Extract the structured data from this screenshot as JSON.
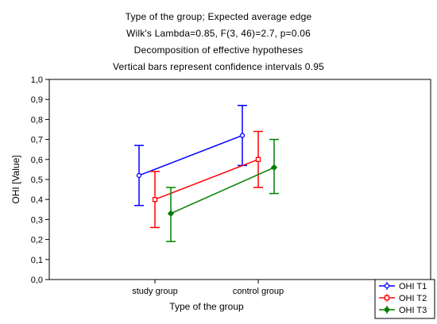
{
  "chart_data": {
    "type": "line",
    "title_lines": [
      "Type of the group; Expected average edge",
      "Wilk's Lambda=0.85, F(3, 46)=2.7, p=0.06",
      "Decomposition of effective hypotheses",
      "Vertical bars represent confidence intervals 0.95"
    ],
    "xlabel": "Type of the group",
    "ylabel": "OHI [Value]",
    "categories": [
      "study group",
      "control group"
    ],
    "ylim": [
      0,
      1
    ],
    "yticks": [
      "0,0",
      "0,1",
      "0,2",
      "0,3",
      "0,4",
      "0,5",
      "0,6",
      "0,7",
      "0,8",
      "0,9",
      "1,0"
    ],
    "grid": false,
    "legend_position": "bottom-right",
    "series": [
      {
        "name": "OHI T1",
        "color": "#0000ff",
        "marker": "circle",
        "values": [
          0.52,
          0.72
        ],
        "lower": [
          0.37,
          0.57
        ],
        "upper": [
          0.67,
          0.87
        ]
      },
      {
        "name": "OHI T2",
        "color": "#ff0000",
        "marker": "square",
        "values": [
          0.4,
          0.6
        ],
        "lower": [
          0.26,
          0.46
        ],
        "upper": [
          0.54,
          0.74
        ]
      },
      {
        "name": "OHI T3",
        "color": "#008000",
        "marker": "diamond",
        "values": [
          0.33,
          0.56
        ],
        "lower": [
          0.19,
          0.43
        ],
        "upper": [
          0.46,
          0.7
        ]
      }
    ]
  }
}
